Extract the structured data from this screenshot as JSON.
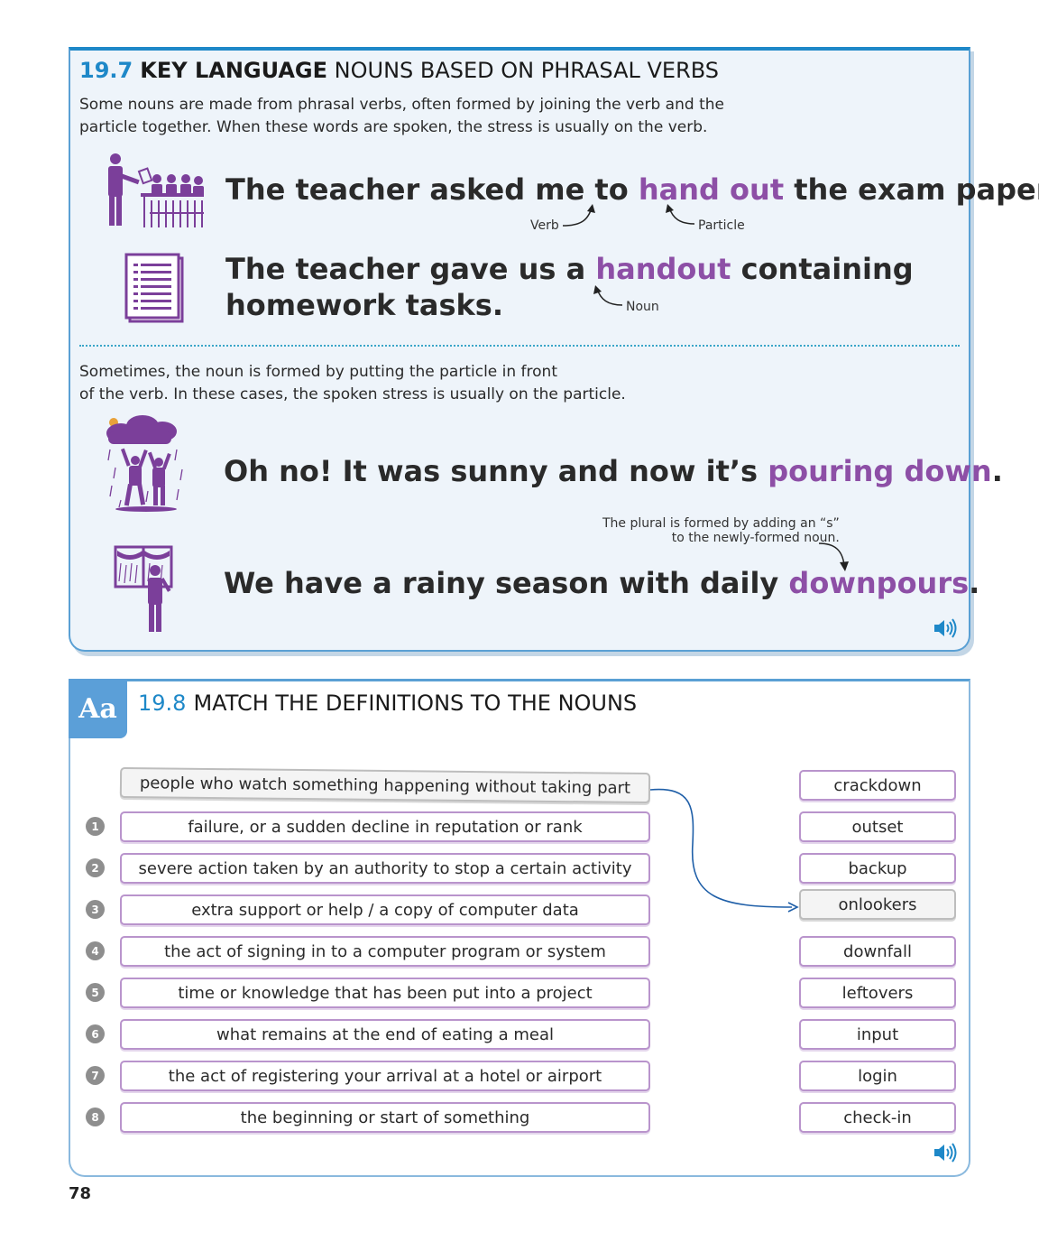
{
  "key_language": {
    "number": "19.7",
    "title_bold": "KEY LANGUAGE",
    "title_rest": "NOUNS BASED ON PHRASAL VERBS",
    "intro_line1": "Some nouns are made from phrasal verbs, often formed by joining the verb and the",
    "intro_line2": "particle together. When these words are spoken, the stress is usually on the verb.",
    "sentence1": {
      "before": "The teacher asked me to ",
      "highlight": "hand out",
      "after": " the exam papers."
    },
    "label_verb": "Verb",
    "label_particle": "Particle",
    "sentence2": {
      "before": "The teacher gave us a ",
      "highlight": "handout",
      "after": " containing",
      "line2": "homework tasks."
    },
    "label_noun": "Noun",
    "intro2_line1": "Sometimes, the noun is formed by putting the particle in front",
    "intro2_line2": "of the verb. In these cases, the spoken stress is usually on the particle.",
    "sentence3": {
      "before": "Oh no! It was sunny and now it’s ",
      "highlight": "pouring down",
      "after": "."
    },
    "plural_note_line1": "The plural is formed by adding an “s”",
    "plural_note_line2": "to the newly-formed noun.",
    "sentence4": {
      "before": "We have a rainy season with daily ",
      "highlight": "downpours",
      "after": "."
    },
    "audio_icon": "speaker-icon"
  },
  "exercise": {
    "tab_label": "Aa",
    "number": "19.8",
    "title": "MATCH THE DEFINITIONS TO THE NOUNS",
    "example_definition": "people who watch something happening without taking part",
    "definitions": [
      {
        "num": "1",
        "text": "failure, or a sudden decline in reputation or rank"
      },
      {
        "num": "2",
        "text": "severe action taken by an authority to stop a certain activity"
      },
      {
        "num": "3",
        "text": "extra support or help / a copy of computer data"
      },
      {
        "num": "4",
        "text": "the act of signing in to a computer program or system"
      },
      {
        "num": "5",
        "text": "time or knowledge that has been put into a project"
      },
      {
        "num": "6",
        "text": "what remains at the end of eating a meal"
      },
      {
        "num": "7",
        "text": "the act of registering your arrival at a hotel or airport"
      },
      {
        "num": "8",
        "text": "the beginning or start of something"
      }
    ],
    "nouns": [
      "crackdown",
      "outset",
      "backup",
      "onlookers",
      "downfall",
      "leftovers",
      "input",
      "login",
      "check-in"
    ],
    "example_noun": "onlookers",
    "audio_icon": "speaker-icon"
  },
  "page_number": "78",
  "colors": {
    "blue": "#1e88c8",
    "purple": "#8d4fa6",
    "illustration": "#7b3f9a"
  }
}
